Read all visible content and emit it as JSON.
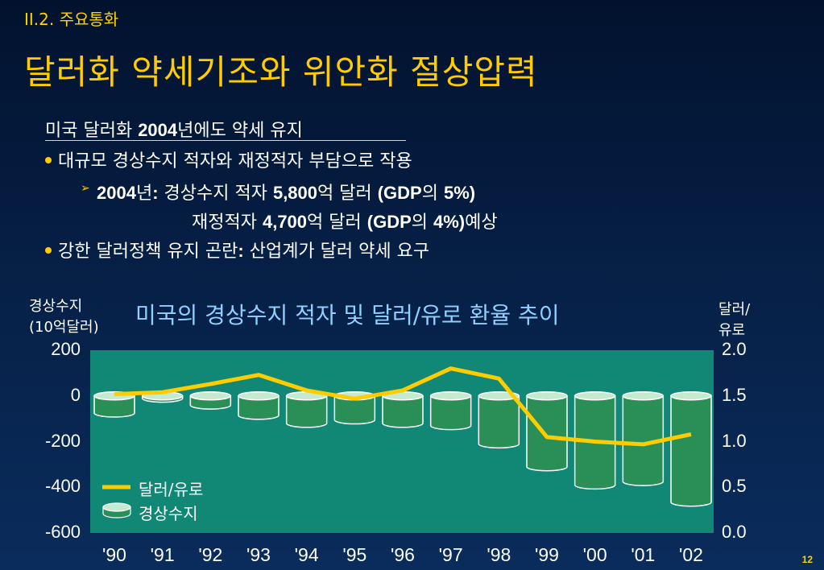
{
  "section_label": "II.2. 주요통화",
  "main_title": "달러화 약세기조와 위안화 절상압력",
  "bullets": {
    "heading_prefix": "미국 달러화 ",
    "heading_year": "2004",
    "heading_suffix": "년에도 약세 유지",
    "b1": "대규모 경상수지 적자와 재정적자 부담으로 작용",
    "b2_year": "2004",
    "b2_mid": "년",
    "b2_colon": ":",
    "b2_text": " 경상수지 적자 ",
    "b2_amount": "5,800",
    "b2_unit": "억 달러 ",
    "b2_paren_open": "(GDP",
    "b2_of": "의 ",
    "b2_pct": "5%)",
    "b3_text": "재정적자 ",
    "b3_amount": "4,700",
    "b3_unit": "억 달러 ",
    "b3_paren_open": "(GDP",
    "b3_of": "의 ",
    "b3_pct": "4%)",
    "b3_suffix": "예상",
    "b4_text": "강한 달러정책 유지 곤란",
    "b4_colon": ":",
    "b4_rest": " 산업계가 달러 약세 요구"
  },
  "chart_data": {
    "type": "bar",
    "title": "미국의 경상수지 적자 및  달러/유로 환율 추이",
    "ylabel_left_line1": "경상수지",
    "ylabel_left_line2": "(10억달러)",
    "ylabel_right_line1": "달러/",
    "ylabel_right_line2": "유로",
    "categories": [
      "'90",
      "'91",
      "'92",
      "'93",
      "'94",
      "'95",
      "'96",
      "'97",
      "'98",
      "'99",
      "'00",
      "'01",
      "'02"
    ],
    "left_axis": {
      "ticks": [
        "200",
        "0",
        "-200",
        "-400",
        "-600"
      ],
      "ylim": [
        -600,
        200
      ]
    },
    "right_axis": {
      "ticks": [
        "2.0",
        "1.5",
        "1.0",
        "0.5",
        "0.0"
      ],
      "ylim": [
        0.0,
        2.0
      ]
    },
    "series": [
      {
        "name": "경상수지",
        "type": "bar",
        "axis": "left",
        "values": [
          -75,
          -10,
          -40,
          -85,
          -120,
          -105,
          -120,
          -130,
          -210,
          -310,
          -390,
          -375,
          -465
        ]
      },
      {
        "name": "달러/유로",
        "type": "line",
        "axis": "right",
        "values": [
          1.52,
          1.54,
          1.63,
          1.73,
          1.56,
          1.47,
          1.56,
          1.8,
          1.69,
          1.05,
          1.0,
          0.97,
          1.08
        ]
      }
    ],
    "legend_position": "bottom-left",
    "colors": {
      "plot_bg": "#118875",
      "bar": "#2a8f56",
      "bar_top": "#c6ead0",
      "line": "#ffcc00"
    }
  },
  "page_number": "12"
}
